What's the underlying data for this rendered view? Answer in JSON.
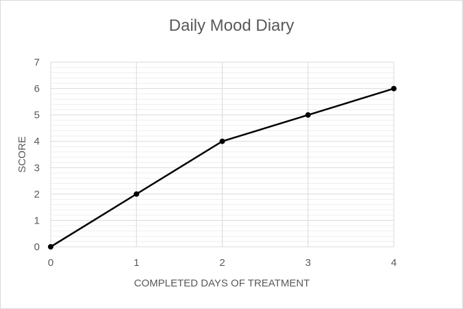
{
  "chart_data": {
    "type": "line",
    "title": "Daily Mood Diary",
    "xlabel": "COMPLETED DAYS OF TREATMENT",
    "ylabel": "SCORE",
    "x": [
      0,
      1,
      2,
      3,
      4
    ],
    "series": [
      {
        "values": [
          0,
          2,
          4,
          5,
          6
        ]
      }
    ],
    "xlim": [
      0,
      4
    ],
    "ylim": [
      0,
      7
    ],
    "xticks": [
      "0",
      "1",
      "2",
      "3",
      "4"
    ],
    "yticks": [
      "0",
      "1",
      "2",
      "3",
      "4",
      "5",
      "6",
      "7"
    ],
    "minor_gridlines": true,
    "grid": true,
    "colors": {
      "line": "#000000",
      "grid_major": "#d9d9d9",
      "grid_minor": "#ededed",
      "text": "#595959"
    }
  }
}
